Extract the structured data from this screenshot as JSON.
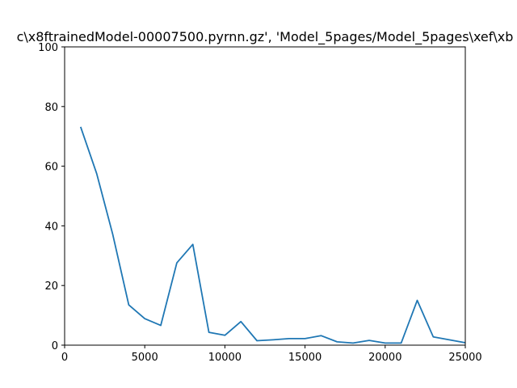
{
  "chart_data": {
    "type": "line",
    "title": "c\\x8ftrainedModel-00007500.pyrnn.gz', 'Model_5pages/Model_5pages\\xef\\xb",
    "xlabel": "",
    "ylabel": "",
    "xlim": [
      0,
      25000
    ],
    "ylim": [
      0,
      100
    ],
    "xticks": [
      0,
      5000,
      10000,
      15000,
      20000,
      25000
    ],
    "xtick_labels": [
      "0",
      "5000",
      "10000",
      "15000",
      "20000",
      "25000"
    ],
    "yticks": [
      0,
      20,
      40,
      60,
      80,
      100
    ],
    "ytick_labels": [
      "0",
      "20",
      "40",
      "60",
      "80",
      "100"
    ],
    "grid": false,
    "series": [
      {
        "color": "#1f77b4",
        "x": [
          1000,
          2000,
          3000,
          4000,
          5000,
          6000,
          7000,
          8000,
          9000,
          10000,
          11000,
          12000,
          13000,
          14000,
          15000,
          16000,
          17000,
          18000,
          19000,
          20000,
          21000,
          22000,
          23000,
          24000,
          25000
        ],
        "y": [
          73.2,
          57.5,
          37.2,
          13.5,
          8.9,
          6.6,
          27.6,
          33.8,
          4.3,
          3.3,
          7.9,
          1.5,
          1.8,
          2.2,
          2.2,
          3.2,
          1.1,
          0.7,
          1.6,
          0.7,
          0.7,
          15.0,
          2.8,
          1.8,
          0.8
        ]
      }
    ]
  }
}
